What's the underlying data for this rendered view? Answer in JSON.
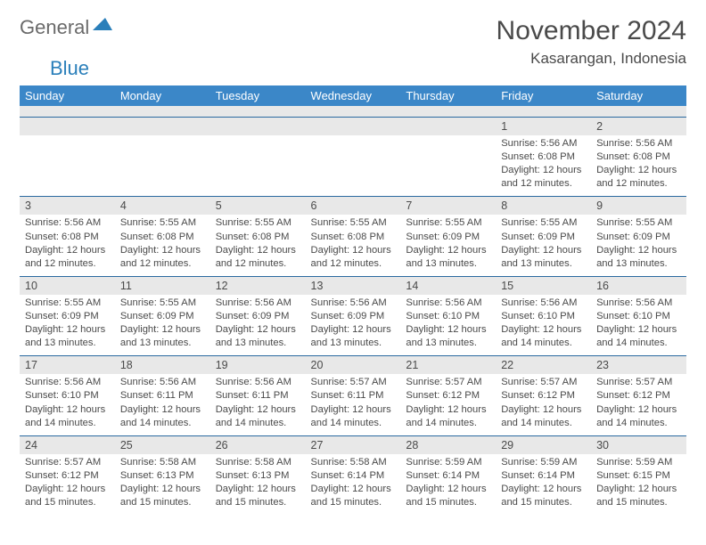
{
  "logo": {
    "general": "General",
    "blue": "Blue"
  },
  "title": "November 2024",
  "location": "Kasarangan, Indonesia",
  "colors": {
    "header_bg": "#3b87c8",
    "header_text": "#ffffff",
    "daynum_bg": "#e8e8e8",
    "border": "#2a6aa0",
    "text": "#4a4a4a",
    "logo_general": "#6a6a6a",
    "logo_blue": "#2a7fba"
  },
  "day_names": [
    "Sunday",
    "Monday",
    "Tuesday",
    "Wednesday",
    "Thursday",
    "Friday",
    "Saturday"
  ],
  "weeks": [
    [
      {
        "n": "",
        "sr": "",
        "ss": "",
        "dl": ""
      },
      {
        "n": "",
        "sr": "",
        "ss": "",
        "dl": ""
      },
      {
        "n": "",
        "sr": "",
        "ss": "",
        "dl": ""
      },
      {
        "n": "",
        "sr": "",
        "ss": "",
        "dl": ""
      },
      {
        "n": "",
        "sr": "",
        "ss": "",
        "dl": ""
      },
      {
        "n": "1",
        "sr": "Sunrise: 5:56 AM",
        "ss": "Sunset: 6:08 PM",
        "dl": "Daylight: 12 hours and 12 minutes."
      },
      {
        "n": "2",
        "sr": "Sunrise: 5:56 AM",
        "ss": "Sunset: 6:08 PM",
        "dl": "Daylight: 12 hours and 12 minutes."
      }
    ],
    [
      {
        "n": "3",
        "sr": "Sunrise: 5:56 AM",
        "ss": "Sunset: 6:08 PM",
        "dl": "Daylight: 12 hours and 12 minutes."
      },
      {
        "n": "4",
        "sr": "Sunrise: 5:55 AM",
        "ss": "Sunset: 6:08 PM",
        "dl": "Daylight: 12 hours and 12 minutes."
      },
      {
        "n": "5",
        "sr": "Sunrise: 5:55 AM",
        "ss": "Sunset: 6:08 PM",
        "dl": "Daylight: 12 hours and 12 minutes."
      },
      {
        "n": "6",
        "sr": "Sunrise: 5:55 AM",
        "ss": "Sunset: 6:08 PM",
        "dl": "Daylight: 12 hours and 12 minutes."
      },
      {
        "n": "7",
        "sr": "Sunrise: 5:55 AM",
        "ss": "Sunset: 6:09 PM",
        "dl": "Daylight: 12 hours and 13 minutes."
      },
      {
        "n": "8",
        "sr": "Sunrise: 5:55 AM",
        "ss": "Sunset: 6:09 PM",
        "dl": "Daylight: 12 hours and 13 minutes."
      },
      {
        "n": "9",
        "sr": "Sunrise: 5:55 AM",
        "ss": "Sunset: 6:09 PM",
        "dl": "Daylight: 12 hours and 13 minutes."
      }
    ],
    [
      {
        "n": "10",
        "sr": "Sunrise: 5:55 AM",
        "ss": "Sunset: 6:09 PM",
        "dl": "Daylight: 12 hours and 13 minutes."
      },
      {
        "n": "11",
        "sr": "Sunrise: 5:55 AM",
        "ss": "Sunset: 6:09 PM",
        "dl": "Daylight: 12 hours and 13 minutes."
      },
      {
        "n": "12",
        "sr": "Sunrise: 5:56 AM",
        "ss": "Sunset: 6:09 PM",
        "dl": "Daylight: 12 hours and 13 minutes."
      },
      {
        "n": "13",
        "sr": "Sunrise: 5:56 AM",
        "ss": "Sunset: 6:09 PM",
        "dl": "Daylight: 12 hours and 13 minutes."
      },
      {
        "n": "14",
        "sr": "Sunrise: 5:56 AM",
        "ss": "Sunset: 6:10 PM",
        "dl": "Daylight: 12 hours and 13 minutes."
      },
      {
        "n": "15",
        "sr": "Sunrise: 5:56 AM",
        "ss": "Sunset: 6:10 PM",
        "dl": "Daylight: 12 hours and 14 minutes."
      },
      {
        "n": "16",
        "sr": "Sunrise: 5:56 AM",
        "ss": "Sunset: 6:10 PM",
        "dl": "Daylight: 12 hours and 14 minutes."
      }
    ],
    [
      {
        "n": "17",
        "sr": "Sunrise: 5:56 AM",
        "ss": "Sunset: 6:10 PM",
        "dl": "Daylight: 12 hours and 14 minutes."
      },
      {
        "n": "18",
        "sr": "Sunrise: 5:56 AM",
        "ss": "Sunset: 6:11 PM",
        "dl": "Daylight: 12 hours and 14 minutes."
      },
      {
        "n": "19",
        "sr": "Sunrise: 5:56 AM",
        "ss": "Sunset: 6:11 PM",
        "dl": "Daylight: 12 hours and 14 minutes."
      },
      {
        "n": "20",
        "sr": "Sunrise: 5:57 AM",
        "ss": "Sunset: 6:11 PM",
        "dl": "Daylight: 12 hours and 14 minutes."
      },
      {
        "n": "21",
        "sr": "Sunrise: 5:57 AM",
        "ss": "Sunset: 6:12 PM",
        "dl": "Daylight: 12 hours and 14 minutes."
      },
      {
        "n": "22",
        "sr": "Sunrise: 5:57 AM",
        "ss": "Sunset: 6:12 PM",
        "dl": "Daylight: 12 hours and 14 minutes."
      },
      {
        "n": "23",
        "sr": "Sunrise: 5:57 AM",
        "ss": "Sunset: 6:12 PM",
        "dl": "Daylight: 12 hours and 14 minutes."
      }
    ],
    [
      {
        "n": "24",
        "sr": "Sunrise: 5:57 AM",
        "ss": "Sunset: 6:12 PM",
        "dl": "Daylight: 12 hours and 15 minutes."
      },
      {
        "n": "25",
        "sr": "Sunrise: 5:58 AM",
        "ss": "Sunset: 6:13 PM",
        "dl": "Daylight: 12 hours and 15 minutes."
      },
      {
        "n": "26",
        "sr": "Sunrise: 5:58 AM",
        "ss": "Sunset: 6:13 PM",
        "dl": "Daylight: 12 hours and 15 minutes."
      },
      {
        "n": "27",
        "sr": "Sunrise: 5:58 AM",
        "ss": "Sunset: 6:14 PM",
        "dl": "Daylight: 12 hours and 15 minutes."
      },
      {
        "n": "28",
        "sr": "Sunrise: 5:59 AM",
        "ss": "Sunset: 6:14 PM",
        "dl": "Daylight: 12 hours and 15 minutes."
      },
      {
        "n": "29",
        "sr": "Sunrise: 5:59 AM",
        "ss": "Sunset: 6:14 PM",
        "dl": "Daylight: 12 hours and 15 minutes."
      },
      {
        "n": "30",
        "sr": "Sunrise: 5:59 AM",
        "ss": "Sunset: 6:15 PM",
        "dl": "Daylight: 12 hours and 15 minutes."
      }
    ]
  ]
}
